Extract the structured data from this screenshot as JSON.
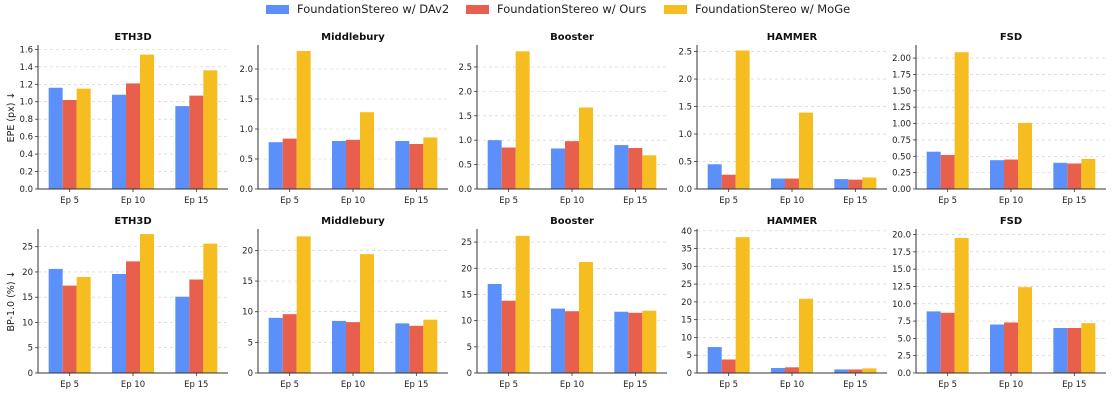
{
  "legend": [
    {
      "label": "FoundationStereo w/ DAv2",
      "color": "#5b8ff9"
    },
    {
      "label": "FoundationStereo w/ Ours",
      "color": "#e8604c"
    },
    {
      "label": "FoundationStereo w/ MoGe",
      "color": "#f5bd1f"
    }
  ],
  "chart_data": [
    {
      "type": "bar",
      "row": 0,
      "col": 0,
      "title": "ETH3D",
      "ylabel": "EPE (px) ↓",
      "categories": [
        "Ep 5",
        "Ep 10",
        "Ep 15"
      ],
      "ylim": [
        0,
        1.65
      ],
      "yticks": [
        0,
        0.2,
        0.4,
        0.6,
        0.8,
        1.0,
        1.2,
        1.4,
        1.6
      ],
      "yticklabels": [
        "0.0",
        "0.2",
        "0.4",
        "0.6",
        "0.8",
        "1.0",
        "1.2",
        "1.4",
        "1.6"
      ],
      "series": [
        {
          "name": "FoundationStereo w/ DAv2",
          "values": [
            1.16,
            1.08,
            0.95
          ]
        },
        {
          "name": "FoundationStereo w/ Ours",
          "values": [
            1.02,
            1.21,
            1.07
          ]
        },
        {
          "name": "FoundationStereo w/ MoGe",
          "values": [
            1.15,
            1.54,
            1.36
          ]
        }
      ]
    },
    {
      "type": "bar",
      "row": 0,
      "col": 1,
      "title": "Middlebury",
      "ylabel": "",
      "categories": [
        "Ep 5",
        "Ep 10",
        "Ep 15"
      ],
      "ylim": [
        0,
        2.4
      ],
      "yticks": [
        0,
        0.5,
        1.0,
        1.5,
        2.0
      ],
      "yticklabels": [
        "0.0",
        "0.5",
        "1.0",
        "1.5",
        "2.0"
      ],
      "series": [
        {
          "name": "FoundationStereo w/ DAv2",
          "values": [
            0.78,
            0.8,
            0.8
          ]
        },
        {
          "name": "FoundationStereo w/ Ours",
          "values": [
            0.84,
            0.82,
            0.75
          ]
        },
        {
          "name": "FoundationStereo w/ MoGe",
          "values": [
            2.3,
            1.28,
            0.86
          ]
        }
      ]
    },
    {
      "type": "bar",
      "row": 0,
      "col": 2,
      "title": "Booster",
      "ylabel": "",
      "categories": [
        "Ep 5",
        "Ep 10",
        "Ep 15"
      ],
      "ylim": [
        0,
        2.95
      ],
      "yticks": [
        0,
        0.5,
        1.0,
        1.5,
        2.0,
        2.5
      ],
      "yticklabels": [
        "0.0",
        "0.5",
        "1.0",
        "1.5",
        "2.0",
        "2.5"
      ],
      "series": [
        {
          "name": "FoundationStereo w/ DAv2",
          "values": [
            1.0,
            0.83,
            0.9
          ]
        },
        {
          "name": "FoundationStereo w/ Ours",
          "values": [
            0.85,
            0.98,
            0.84
          ]
        },
        {
          "name": "FoundationStereo w/ MoGe",
          "values": [
            2.82,
            1.67,
            0.69
          ]
        }
      ]
    },
    {
      "type": "bar",
      "row": 0,
      "col": 3,
      "title": "HAMMER",
      "ylabel": "",
      "categories": [
        "Ep 5",
        "Ep 10",
        "Ep 15"
      ],
      "ylim": [
        0,
        2.62
      ],
      "yticks": [
        0,
        0.5,
        1.0,
        1.5,
        2.0,
        2.5
      ],
      "yticklabels": [
        "0.0",
        "0.5",
        "1.0",
        "1.5",
        "2.0",
        "2.5"
      ],
      "series": [
        {
          "name": "FoundationStereo w/ DAv2",
          "values": [
            0.45,
            0.19,
            0.18
          ]
        },
        {
          "name": "FoundationStereo w/ Ours",
          "values": [
            0.26,
            0.19,
            0.17
          ]
        },
        {
          "name": "FoundationStereo w/ MoGe",
          "values": [
            2.52,
            1.39,
            0.21
          ]
        }
      ]
    },
    {
      "type": "bar",
      "row": 0,
      "col": 4,
      "title": "FSD",
      "ylabel": "",
      "categories": [
        "Ep 5",
        "Ep 10",
        "Ep 15"
      ],
      "ylim": [
        0,
        2.2
      ],
      "yticks": [
        0,
        0.25,
        0.5,
        0.75,
        1.0,
        1.25,
        1.5,
        1.75,
        2.0
      ],
      "yticklabels": [
        "0.00",
        "0.25",
        "0.50",
        "0.75",
        "1.00",
        "1.25",
        "1.50",
        "1.75",
        "2.00"
      ],
      "series": [
        {
          "name": "FoundationStereo w/ DAv2",
          "values": [
            0.57,
            0.44,
            0.4
          ]
        },
        {
          "name": "FoundationStereo w/ Ours",
          "values": [
            0.52,
            0.45,
            0.39
          ]
        },
        {
          "name": "FoundationStereo w/ MoGe",
          "values": [
            2.09,
            1.01,
            0.46
          ]
        }
      ]
    },
    {
      "type": "bar",
      "row": 1,
      "col": 0,
      "title": "ETH3D",
      "ylabel": "BP-1.0 (%) ↓",
      "categories": [
        "Ep 5",
        "Ep 10",
        "Ep 15"
      ],
      "ylim": [
        0,
        28.5
      ],
      "yticks": [
        0,
        5,
        10,
        15,
        20,
        25
      ],
      "yticklabels": [
        "0",
        "5",
        "10",
        "15",
        "20",
        "25"
      ],
      "series": [
        {
          "name": "FoundationStereo w/ DAv2",
          "values": [
            20.6,
            19.6,
            15.1
          ]
        },
        {
          "name": "FoundationStereo w/ Ours",
          "values": [
            17.3,
            22.1,
            18.5
          ]
        },
        {
          "name": "FoundationStereo w/ MoGe",
          "values": [
            19.0,
            27.5,
            25.6
          ]
        }
      ]
    },
    {
      "type": "bar",
      "row": 1,
      "col": 1,
      "title": "Middlebury",
      "ylabel": "",
      "categories": [
        "Ep 5",
        "Ep 10",
        "Ep 15"
      ],
      "ylim": [
        0,
        23.5
      ],
      "yticks": [
        0,
        5,
        10,
        15,
        20
      ],
      "yticklabels": [
        "0",
        "5",
        "10",
        "15",
        "20"
      ],
      "series": [
        {
          "name": "FoundationStereo w/ DAv2",
          "values": [
            9.0,
            8.5,
            8.1
          ]
        },
        {
          "name": "FoundationStereo w/ Ours",
          "values": [
            9.6,
            8.3,
            7.7
          ]
        },
        {
          "name": "FoundationStereo w/ MoGe",
          "values": [
            22.3,
            19.4,
            8.7
          ]
        }
      ]
    },
    {
      "type": "bar",
      "row": 1,
      "col": 2,
      "title": "Booster",
      "ylabel": "",
      "categories": [
        "Ep 5",
        "Ep 10",
        "Ep 15"
      ],
      "ylim": [
        0,
        27.5
      ],
      "yticks": [
        0,
        5,
        10,
        15,
        20,
        25
      ],
      "yticklabels": [
        "0",
        "5",
        "10",
        "15",
        "20",
        "25"
      ],
      "series": [
        {
          "name": "FoundationStereo w/ DAv2",
          "values": [
            17.0,
            12.3,
            11.7
          ]
        },
        {
          "name": "FoundationStereo w/ Ours",
          "values": [
            13.8,
            11.8,
            11.5
          ]
        },
        {
          "name": "FoundationStereo w/ MoGe",
          "values": [
            26.2,
            21.2,
            11.9
          ]
        }
      ]
    },
    {
      "type": "bar",
      "row": 1,
      "col": 3,
      "title": "HAMMER",
      "ylabel": "",
      "categories": [
        "Ep 5",
        "Ep 10",
        "Ep 15"
      ],
      "ylim": [
        0,
        40.5
      ],
      "yticks": [
        0,
        5,
        10,
        15,
        20,
        25,
        30,
        35,
        40
      ],
      "yticklabels": [
        "0",
        "5",
        "10",
        "15",
        "20",
        "25",
        "30",
        "35",
        "40"
      ],
      "series": [
        {
          "name": "FoundationStereo w/ DAv2",
          "values": [
            7.3,
            1.4,
            1.0
          ]
        },
        {
          "name": "FoundationStereo w/ Ours",
          "values": [
            3.8,
            1.6,
            1.0
          ]
        },
        {
          "name": "FoundationStereo w/ MoGe",
          "values": [
            38.2,
            20.9,
            1.3
          ]
        }
      ]
    },
    {
      "type": "bar",
      "row": 1,
      "col": 4,
      "title": "FSD",
      "ylabel": "",
      "categories": [
        "Ep 5",
        "Ep 10",
        "Ep 15"
      ],
      "ylim": [
        0,
        20.8
      ],
      "yticks": [
        0,
        2.5,
        5,
        7.5,
        10,
        12.5,
        15,
        17.5,
        20
      ],
      "yticklabels": [
        "0.0",
        "2.5",
        "5.0",
        "7.5",
        "10.0",
        "12.5",
        "15.0",
        "17.5",
        "20.0"
      ],
      "series": [
        {
          "name": "FoundationStereo w/ DAv2",
          "values": [
            8.9,
            7.0,
            6.5
          ]
        },
        {
          "name": "FoundationStereo w/ Ours",
          "values": [
            8.7,
            7.3,
            6.5
          ]
        },
        {
          "name": "FoundationStereo w/ MoGe",
          "values": [
            19.5,
            12.4,
            7.2
          ]
        }
      ]
    }
  ]
}
